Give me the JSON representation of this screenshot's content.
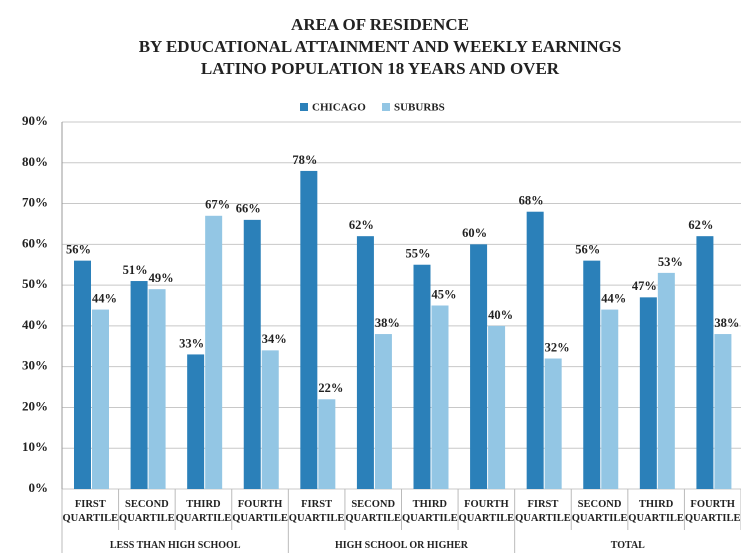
{
  "chart_data": {
    "type": "bar",
    "title": "AREA OF RESIDENCE",
    "subtitle": [
      "BY EDUCATIONAL ATTAINMENT AND WEEKLY EARNINGS",
      "LATINO POPULATION 18 YEARS AND OVER"
    ],
    "categories": [
      "FIRST QUARTILE",
      "SECOND QUARTILE",
      "THIRD QUARTILE",
      "FOURTH QUARTILE",
      "FIRST QUARTILE",
      "SECOND QUARTILE",
      "THIRD QUARTILE",
      "FOURTH QUARTILE",
      "FIRST QUARTILE",
      "SECOND QUARTILE",
      "THIRD QUARTILE",
      "FOURTH QUARTILE"
    ],
    "groups": [
      "LESS THAN HIGH SCHOOL",
      "HIGH SCHOOL OR HIGHER",
      "TOTAL"
    ],
    "series": [
      {
        "name": "CHICAGO",
        "color": "#2b80b9",
        "values": [
          56,
          51,
          33,
          66,
          78,
          62,
          55,
          60,
          68,
          56,
          47,
          62
        ],
        "value_labels": [
          "56%",
          "51%",
          "33%",
          "66%",
          "78%",
          "62%",
          "55%",
          "60%",
          "68%",
          "56%",
          "47%",
          "62%"
        ]
      },
      {
        "name": "SUBURBS",
        "color": "#93c6e4",
        "values": [
          44,
          49,
          67,
          34,
          22,
          38,
          45,
          40,
          32,
          44,
          53,
          38
        ],
        "value_labels": [
          "44%",
          "49%",
          "67%",
          "34%",
          "22%",
          "38%",
          "45%",
          "40%",
          "32%",
          "44%",
          "53%",
          "38%"
        ]
      }
    ],
    "ylim": [
      0,
      90
    ],
    "yticks": [
      {
        "value": 0,
        "label": "0%"
      },
      {
        "value": 10,
        "label": "10%"
      },
      {
        "value": 20,
        "label": "20%"
      },
      {
        "value": 30,
        "label": "30%"
      },
      {
        "value": 40,
        "label": "40%"
      },
      {
        "value": 50,
        "label": "50%"
      },
      {
        "value": 60,
        "label": "60%"
      },
      {
        "value": 70,
        "label": "70%"
      },
      {
        "value": 80,
        "label": "80%"
      },
      {
        "value": 90,
        "label": "90%"
      }
    ],
    "grid": true,
    "legend": "top"
  }
}
